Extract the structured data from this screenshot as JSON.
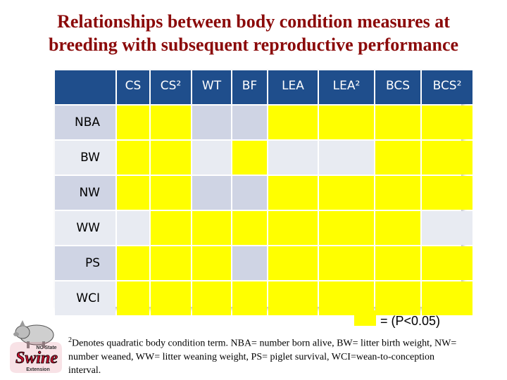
{
  "title_line1": "Relationships between body condition measures at",
  "title_line2": "breeding with subsequent reproductive performance",
  "columns": [
    "CS",
    "CS²",
    "WT",
    "BF",
    "LEA",
    "LEA²",
    "BCS",
    "BCS²"
  ],
  "rows": [
    {
      "label": "NBA",
      "sig": [
        true,
        true,
        false,
        false,
        true,
        true,
        true,
        true
      ]
    },
    {
      "label": "BW",
      "sig": [
        true,
        true,
        false,
        true,
        false,
        false,
        true,
        true
      ]
    },
    {
      "label": "NW",
      "sig": [
        true,
        true,
        false,
        false,
        true,
        true,
        true,
        true
      ]
    },
    {
      "label": "WW",
      "sig": [
        false,
        true,
        true,
        true,
        true,
        true,
        true,
        false
      ]
    },
    {
      "label": "PS",
      "sig": [
        true,
        true,
        true,
        false,
        true,
        true,
        true,
        true
      ]
    },
    {
      "label": "WCI",
      "sig": [
        true,
        true,
        true,
        true,
        true,
        true,
        true,
        true
      ]
    }
  ],
  "colors": {
    "significant": "#ffff00",
    "header": "#1f4e8c",
    "title": "#8b0a0a"
  },
  "legend_text": "= (P<0.05)",
  "footnote_sup": "2",
  "footnote_text": "Denotes quadratic body condition term. NBA= number born alive, BW= litter birth weight, NW= number weaned, WW= litter weaning weight, PS= piglet survival, WCI=wean-to-conception interval.",
  "logo": {
    "line1": "NC State",
    "line2": "Swine",
    "line3": "Extension"
  }
}
